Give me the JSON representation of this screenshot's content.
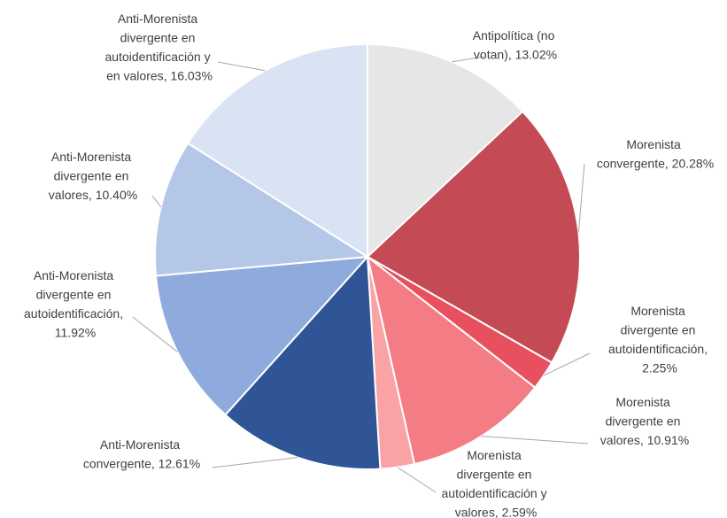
{
  "chart_data": {
    "type": "pie",
    "values": [
      13.02,
      20.28,
      2.25,
      10.91,
      2.59,
      12.61,
      11.92,
      10.4,
      16.03
    ],
    "value_labels": [
      "Antipolítica (no votan), 13.02%",
      "Morenista convergente, 20.28%",
      "Morenista divergente en autoidentificación, 2.25%",
      "Morenista divergente en valores, 10.91%",
      "Morenista divergente en autoidentificación y valores, 2.59%",
      "Anti-Morenista convergente, 12.61%",
      "Anti-Morenista divergente en autoidentificación, 11.92%",
      "Anti-Morenista divergente en valores, 10.40%",
      "Anti-Morenista divergente en autoidentificación y en valores, 16.03%"
    ],
    "colors": [
      "#e6e6e6",
      "#c44a55",
      "#e8505f",
      "#f47c84",
      "#f9a3a6",
      "#2f5597",
      "#8faadc",
      "#b4c7e7",
      "#dae3f3"
    ]
  }
}
